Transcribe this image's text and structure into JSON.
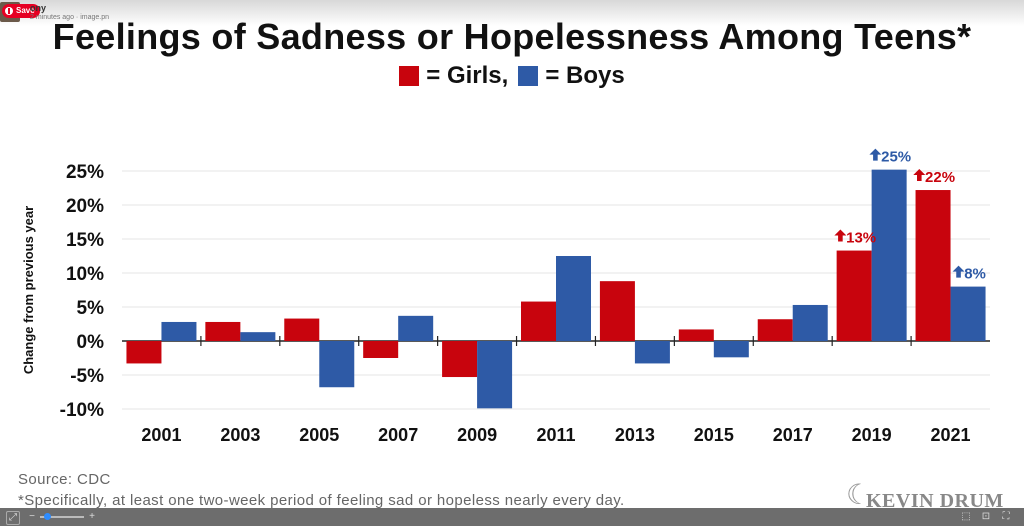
{
  "top": {
    "save_label": "Save",
    "user": "ony",
    "meta": "2 minutes ago · image.pn"
  },
  "title": "Feelings of Sadness or Hopelessness Among Teens*",
  "legend": {
    "girls": "= Girls,",
    "boys": "= Boys"
  },
  "colors": {
    "girls": "#c8040d",
    "boys": "#2e5aa6"
  },
  "chart_data": {
    "type": "bar",
    "ylabel": "Change from previous year",
    "categories": [
      "2001",
      "2003",
      "2005",
      "2007",
      "2009",
      "2011",
      "2013",
      "2015",
      "2017",
      "2019",
      "2021"
    ],
    "series": [
      {
        "name": "Girls",
        "values": [
          -3.3,
          2.8,
          3.3,
          -2.5,
          -5.3,
          5.8,
          8.8,
          1.7,
          3.2,
          13.3,
          22.2
        ]
      },
      {
        "name": "Boys",
        "values": [
          2.8,
          1.3,
          -6.8,
          3.7,
          -9.9,
          12.5,
          -3.3,
          -2.4,
          5.3,
          25.2,
          8.0
        ]
      }
    ],
    "ylim": [
      -10,
      27
    ],
    "yticks": [
      -10,
      -5,
      0,
      5,
      10,
      15,
      20,
      25
    ],
    "ytick_labels": [
      "-10%",
      "-5%",
      "0%",
      "5%",
      "10%",
      "15%",
      "20%",
      "25%"
    ],
    "annotations": [
      {
        "text": "13%",
        "series": "Girls",
        "category": "2019",
        "arrow": "up"
      },
      {
        "text": "25%",
        "series": "Boys",
        "category": "2019",
        "arrow": "up"
      },
      {
        "text": "22%",
        "series": "Girls",
        "category": "2021",
        "arrow": "up"
      },
      {
        "text": "8%",
        "series": "Boys",
        "category": "2021",
        "arrow": "up"
      }
    ],
    "grid": true
  },
  "footer": {
    "source": "Source: CDC",
    "note": "*Specifically, at least one two-week period of feeling sad or hopeless nearly every day."
  },
  "logo": {
    "text": "KEVIN DRUM",
    "icon": "cat-icon"
  },
  "zoom": {
    "minus": "−",
    "plus": "+"
  }
}
